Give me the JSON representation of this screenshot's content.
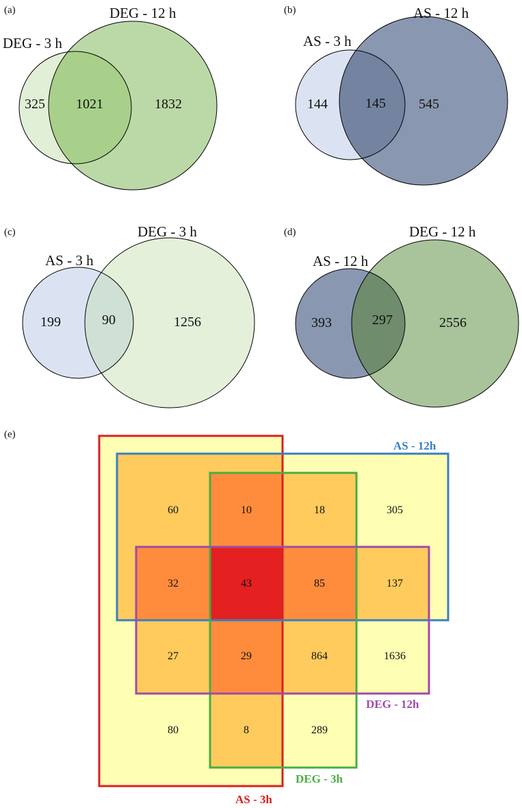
{
  "panels": {
    "a": {
      "tag": "(a)",
      "small_label": "DEG - 3 h",
      "big_label": "DEG - 12 h",
      "only_small": "325",
      "overlap": "1021",
      "only_big": "1832"
    },
    "b": {
      "tag": "(b)",
      "small_label": "AS - 3 h",
      "big_label": "AS - 12 h",
      "only_small": "144",
      "overlap": "145",
      "only_big": "545"
    },
    "c": {
      "tag": "(c)",
      "small_label": "AS - 3 h",
      "big_label": "DEG - 3 h",
      "only_small": "199",
      "overlap": "90",
      "only_big": "1256"
    },
    "d": {
      "tag": "(d)",
      "small_label": "AS - 12 h",
      "big_label": "DEG - 12 h",
      "only_small": "393",
      "overlap": "297",
      "only_big": "2556"
    }
  },
  "panel_e": {
    "tag": "(e)",
    "sets": {
      "as3": {
        "label": "AS - 3h",
        "color": "#d92020"
      },
      "as12": {
        "label": "AS - 12h",
        "color": "#3a7fc1"
      },
      "deg3": {
        "label": "DEG - 3h",
        "color": "#4aad43"
      },
      "deg12": {
        "label": "DEG - 12h",
        "color": "#a04aa8"
      }
    },
    "grid": [
      [
        "60",
        "10",
        "18",
        "305"
      ],
      [
        "32",
        "43",
        "85",
        "137"
      ],
      [
        "27",
        "29",
        "864",
        "1636"
      ],
      [
        "80",
        "8",
        "289",
        ""
      ]
    ],
    "heat_colors": {
      "one": "#ffffb4",
      "two": "#ffcb5c",
      "three": "#ff8c3c",
      "four": "#e42020"
    }
  },
  "colors": {
    "deg3": "#e2efd7",
    "deg12": "#b7d7a2",
    "deg_overlap": "#a8d08a",
    "as3": "#dbe3f3",
    "as12": "#8a97b1",
    "as_overlap": "#74839f",
    "c_overlap": "#cfe1d4",
    "d_deg12": "#a9c49a",
    "d_overlap": "#6f8c6c"
  }
}
